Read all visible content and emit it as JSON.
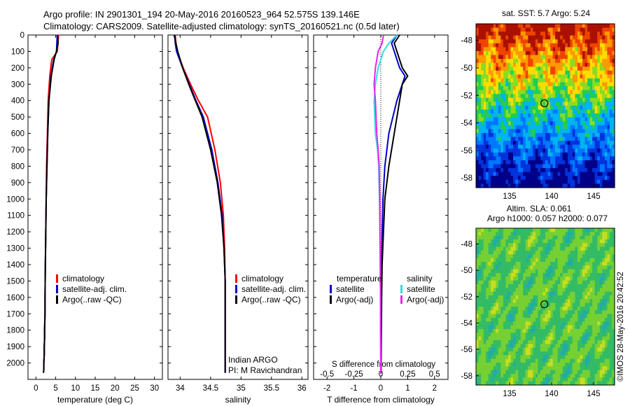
{
  "header": {
    "line1": "Argo profile: IN 2901301_194 20-May-2016 20160523_964 52.575S 139.146E",
    "line2": "Climatology: CARS2009. Satellite-adjusted climatology: synTS_20160521.nc (0.5d later)"
  },
  "credit": "©IMOS 28-May-2016 20:42:52",
  "colors": {
    "climatology": "#ff0000",
    "satellite": "#0000cc",
    "argo": "#000000",
    "sal_satellite": "#33dddd",
    "sal_argo": "#ee22ee"
  },
  "chart_data": [
    {
      "type": "line",
      "xlabel": "temperature (deg C)",
      "xticks": [
        "0",
        "5",
        "10",
        "15",
        "20",
        "25",
        "30"
      ],
      "xlim": [
        -2,
        32
      ],
      "ylim": [
        2100,
        0
      ],
      "yticks": [
        "0",
        "100",
        "200",
        "300",
        "400",
        "500",
        "600",
        "700",
        "800",
        "900",
        "1000",
        "1100",
        "1200",
        "1300",
        "1400",
        "1500",
        "1600",
        "1700",
        "1800",
        "1900",
        "2000"
      ],
      "legend": [
        "climatology",
        "satellite-adj. clim.",
        "Argo(..raw -QC)"
      ],
      "series": [
        {
          "name": "climatology",
          "color": "#ff0000",
          "x": [
            5.7,
            5.6,
            5.4,
            4.0,
            3.5,
            3.1,
            2.9,
            2.7,
            2.6,
            2.5,
            2.4,
            2.3,
            2.3,
            2.2,
            2.2,
            2.1,
            2.1,
            2.0,
            2.0,
            2.0,
            1.9
          ],
          "y": [
            0,
            50,
            100,
            150,
            250,
            400,
            600,
            800,
            1000,
            1200,
            1400,
            1600,
            1700,
            1800,
            1850,
            1900,
            1950,
            2000,
            2020,
            2040,
            2060
          ]
        },
        {
          "name": "satellite-adj. clim.",
          "color": "#0000cc",
          "x": [
            5.4,
            5.3,
            5.2,
            4.5,
            3.8,
            3.3,
            3.0,
            2.8,
            2.6,
            2.5,
            2.4,
            2.3,
            2.3,
            2.2,
            2.2,
            2.1,
            2.1,
            2.0,
            2.0,
            2.0,
            1.9
          ],
          "y": [
            0,
            50,
            100,
            150,
            250,
            400,
            600,
            800,
            1000,
            1200,
            1400,
            1600,
            1700,
            1800,
            1850,
            1900,
            1950,
            2000,
            2020,
            2040,
            2060
          ]
        },
        {
          "name": "Argo(..raw -QC)",
          "color": "#000000",
          "x": [
            5.5,
            5.6,
            5.2,
            4.6,
            3.9,
            3.3,
            3.0,
            2.8,
            2.6,
            2.5,
            2.4,
            2.3,
            2.3,
            2.2,
            2.2,
            2.1,
            2.1,
            2.0,
            2.0,
            2.0,
            1.9
          ],
          "y": [
            5,
            50,
            100,
            150,
            250,
            400,
            600,
            800,
            1000,
            1200,
            1400,
            1600,
            1700,
            1800,
            1850,
            1900,
            1950,
            2000,
            2020,
            2040,
            2060
          ]
        }
      ]
    },
    {
      "type": "line",
      "xlabel": "salinity",
      "xticks": [
        "34",
        "34.5",
        "35",
        "35.5",
        "36"
      ],
      "xtick_values": [
        34,
        34.5,
        35,
        35.5,
        36
      ],
      "xlim": [
        33.8,
        36.1
      ],
      "ylim": [
        2100,
        0
      ],
      "legend": [
        "climatology",
        "satellite-adj. clim.",
        "Argo(..raw -QC)"
      ],
      "annotation": [
        "Indian ARGO",
        "PI: M Ravichandran"
      ],
      "series": [
        {
          "name": "climatology",
          "color": "#ff0000",
          "x": [
            33.92,
            33.93,
            33.95,
            34.05,
            34.17,
            34.3,
            34.45,
            34.57,
            34.66,
            34.71,
            34.73,
            34.74,
            34.74,
            34.74,
            34.74
          ],
          "y": [
            0,
            50,
            100,
            200,
            300,
            400,
            500,
            700,
            900,
            1100,
            1300,
            1500,
            1700,
            1900,
            2060
          ]
        },
        {
          "name": "satellite-adj. clim.",
          "color": "#0000cc",
          "x": [
            33.91,
            33.92,
            33.94,
            34.04,
            34.15,
            34.26,
            34.38,
            34.52,
            34.62,
            34.69,
            34.72,
            34.74,
            34.74,
            34.74,
            34.74
          ],
          "y": [
            0,
            50,
            100,
            200,
            300,
            400,
            500,
            700,
            900,
            1100,
            1300,
            1500,
            1700,
            1900,
            2060
          ]
        },
        {
          "name": "Argo(..raw -QC)",
          "color": "#000000",
          "x": [
            33.9,
            33.93,
            33.96,
            34.04,
            34.14,
            34.25,
            34.36,
            34.5,
            34.61,
            34.68,
            34.72,
            34.74,
            34.74,
            34.74,
            34.74
          ],
          "y": [
            0,
            50,
            100,
            200,
            300,
            400,
            500,
            700,
            900,
            1100,
            1300,
            1500,
            1700,
            1900,
            2060
          ]
        }
      ]
    },
    {
      "type": "line",
      "xlabel": "T difference from climatology",
      "xlabel_top": "S difference from climatology",
      "xticks": [
        "-2",
        "-1",
        "0",
        "1",
        "2"
      ],
      "xtick_values": [
        -2,
        -1,
        0,
        1,
        2
      ],
      "xticks_s": [
        "-0.5",
        "-0.25",
        "0",
        "0.25",
        "0.5"
      ],
      "xlim": [
        -2.5,
        2.5
      ],
      "ylim": [
        2100,
        0
      ],
      "legend": {
        "temperature": [
          "satellite",
          "Argo(-adj)"
        ],
        "salinity": [
          "satellite",
          "Argo(-adj)"
        ]
      },
      "legend_headers": [
        "temperature",
        "salinity"
      ],
      "series": [
        {
          "name": "temperature satellite",
          "color": "#0000cc",
          "x": [
            0.6,
            0.4,
            0.5,
            0.7,
            0.9,
            0.8,
            0.6,
            0.3,
            0.15,
            0.08,
            0.05,
            0.03,
            0.02,
            0.01,
            0.0
          ],
          "y": [
            0,
            50,
            100,
            200,
            250,
            300,
            400,
            600,
            800,
            1000,
            1200,
            1400,
            1600,
            1800,
            2060
          ]
        },
        {
          "name": "temperature Argo(-adj)",
          "color": "#000000",
          "x": [
            0.7,
            0.5,
            0.6,
            0.8,
            1.0,
            0.8,
            0.7,
            0.5,
            0.3,
            0.15,
            0.1,
            0.05,
            0.03,
            0.02,
            0.01
          ],
          "y": [
            0,
            50,
            100,
            200,
            250,
            300,
            400,
            600,
            800,
            1000,
            1200,
            1400,
            1600,
            1800,
            2060
          ]
        },
        {
          "name": "salinity satellite",
          "color": "#33dddd",
          "x": [
            0.6,
            0.3,
            0.1,
            -0.1,
            -0.2,
            -0.25,
            -0.2,
            -0.12,
            -0.08,
            -0.05,
            -0.03,
            -0.02,
            -0.01,
            -0.01,
            0.0
          ],
          "y": [
            0,
            50,
            100,
            200,
            300,
            400,
            600,
            700,
            800,
            1000,
            1200,
            1400,
            1600,
            1800,
            2060
          ]
        },
        {
          "name": "salinity Argo(-adj)",
          "color": "#ee22ee",
          "x": [
            0.1,
            0.05,
            -0.1,
            -0.2,
            -0.25,
            -0.2,
            -0.15,
            -0.1,
            -0.06,
            -0.04,
            -0.03,
            -0.02,
            -0.01,
            -0.01,
            0.0
          ],
          "y": [
            0,
            50,
            100,
            200,
            300,
            400,
            600,
            700,
            800,
            1000,
            1200,
            1400,
            1600,
            1800,
            2060
          ]
        }
      ]
    },
    {
      "type": "heatmap",
      "title": "sat. SST: 5.7 Argo: 5.24",
      "xticks": [
        "135",
        "140",
        "145"
      ],
      "xtick_values": [
        135,
        140,
        145
      ],
      "yticks": [
        "-48",
        "-50",
        "-52",
        "-54",
        "-56",
        "-58"
      ],
      "ytick_values": [
        -48,
        -50,
        -52,
        -54,
        -56,
        -58
      ],
      "xlim": [
        131,
        147.5
      ],
      "ylim": [
        -58.7,
        -46.8
      ],
      "marker": {
        "lon": 139.146,
        "lat": -52.575
      }
    },
    {
      "type": "heatmap",
      "title_lines": [
        "Altim. SLA: 0.061",
        "Argo h1000: 0.057 h2000: 0.077"
      ],
      "xticks": [
        "135",
        "140",
        "145"
      ],
      "xtick_values": [
        135,
        140,
        145
      ],
      "yticks": [
        "-48",
        "-50",
        "-52",
        "-54",
        "-56",
        "-58"
      ],
      "ytick_values": [
        -48,
        -50,
        -52,
        -54,
        -56,
        -58
      ],
      "xlim": [
        131,
        147.5
      ],
      "ylim": [
        -58.7,
        -46.8
      ],
      "marker": {
        "lon": 139.146,
        "lat": -52.575
      }
    }
  ]
}
